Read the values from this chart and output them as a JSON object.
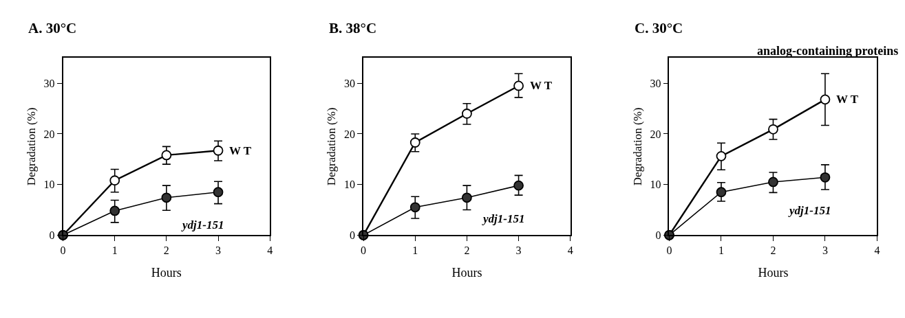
{
  "chart_data": [
    {
      "type": "line",
      "title": "A. 30°C",
      "xlabel": "Hours",
      "ylabel": "Degradation (%)",
      "x": [
        0,
        1,
        2,
        3
      ],
      "xlim": [
        0,
        4
      ],
      "xticks": [
        0,
        1,
        2,
        3,
        4
      ],
      "ylim": [
        0,
        35
      ],
      "yticks": [
        0,
        10,
        20,
        30
      ],
      "marker": "circle",
      "line_style": "solid",
      "series": [
        {
          "name": "W T",
          "color": "#ffffff",
          "values": [
            0,
            10.8,
            15.8,
            16.7
          ],
          "errors": [
            null,
            [
              8.5,
              13.0
            ],
            [
              14.0,
              17.5
            ],
            [
              14.7,
              18.6
            ]
          ]
        },
        {
          "name": "ydj1-151",
          "color": "#333333",
          "values": [
            0,
            4.8,
            7.4,
            8.5
          ],
          "errors": [
            null,
            [
              2.5,
              6.9
            ],
            [
              4.9,
              9.8
            ],
            [
              6.2,
              10.6
            ]
          ]
        }
      ]
    },
    {
      "type": "line",
      "title": "B. 38°C",
      "xlabel": "Hours",
      "ylabel": "Degradation (%)",
      "x": [
        0,
        1,
        2,
        3
      ],
      "xlim": [
        0,
        4
      ],
      "xticks": [
        0,
        1,
        2,
        3,
        4
      ],
      "ylim": [
        0,
        35
      ],
      "yticks": [
        0,
        10,
        20,
        30
      ],
      "marker": "circle",
      "line_style": "solid",
      "series": [
        {
          "name": "W T",
          "color": "#ffffff",
          "values": [
            0,
            18.3,
            24.0,
            29.5
          ],
          "errors": [
            null,
            [
              16.5,
              20.0
            ],
            [
              21.9,
              26.0
            ],
            [
              27.2,
              31.9
            ]
          ]
        },
        {
          "name": "ydj1-151",
          "color": "#333333",
          "values": [
            0,
            5.5,
            7.4,
            9.8
          ],
          "errors": [
            null,
            [
              3.3,
              7.6
            ],
            [
              5.0,
              9.8
            ],
            [
              7.9,
              11.8
            ]
          ]
        }
      ]
    },
    {
      "type": "line",
      "title": "C. 30°C",
      "subtitle": "analog-containing proteins",
      "xlabel": "Hours",
      "ylabel": "Degradation (%)",
      "x": [
        0,
        1,
        2,
        3
      ],
      "xlim": [
        0,
        4
      ],
      "xticks": [
        0,
        1,
        2,
        3,
        4
      ],
      "ylim": [
        0,
        35
      ],
      "yticks": [
        0,
        10,
        20,
        30
      ],
      "marker": "circle",
      "line_style": "solid",
      "series": [
        {
          "name": "W T",
          "color": "#ffffff",
          "values": [
            0,
            15.6,
            20.9,
            26.8
          ],
          "errors": [
            null,
            [
              12.9,
              18.2
            ],
            [
              18.9,
              22.9
            ],
            [
              21.7,
              31.9
            ]
          ]
        },
        {
          "name": "ydj1-151",
          "color": "#333333",
          "values": [
            0,
            8.5,
            10.5,
            11.4
          ],
          "errors": [
            null,
            [
              6.7,
              10.4
            ],
            [
              8.4,
              12.4
            ],
            [
              9.0,
              13.9
            ]
          ]
        }
      ]
    }
  ]
}
